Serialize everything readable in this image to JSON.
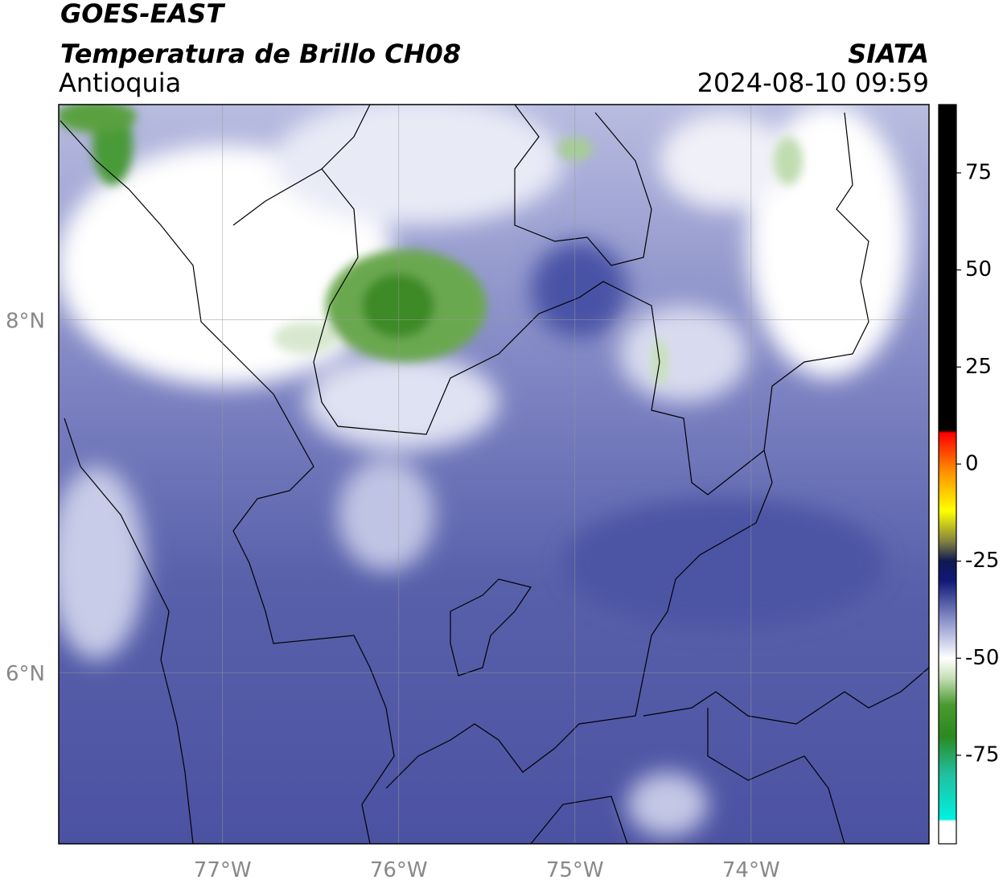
{
  "header": {
    "title": "GOES-EAST",
    "subtitle": "Temperatura de Brillo CH08",
    "region": "Antioquia",
    "source": "SIATA",
    "datetime": "2024-08-10 09:59"
  },
  "chart_data": {
    "type": "map",
    "xlim": [
      -77.93,
      -72.99
    ],
    "ylim": [
      5.03,
      9.22
    ],
    "xticks": [
      {
        "value": -77,
        "label": "77°W"
      },
      {
        "value": -76,
        "label": "76°W"
      },
      {
        "value": -75,
        "label": "75°W"
      },
      {
        "value": -74,
        "label": "74°W"
      }
    ],
    "yticks": [
      {
        "value": 6,
        "label": "6°N"
      },
      {
        "value": 8,
        "label": "8°N"
      }
    ],
    "grid": true,
    "colorbar": {
      "lim": [
        -97.8,
        92.6
      ],
      "ticks": [
        -75,
        -50,
        -25,
        0,
        25,
        50,
        75
      ],
      "stops": [
        {
          "value": -97.8,
          "color": "#ffffff"
        },
        {
          "value": -92,
          "color": "#ffffff"
        },
        {
          "value": -91.5,
          "color": "#00f0e0"
        },
        {
          "value": -80,
          "color": "#20c0a0"
        },
        {
          "value": -70,
          "color": "#2a8a20"
        },
        {
          "value": -62,
          "color": "#4a9a30"
        },
        {
          "value": -55,
          "color": "#c8e0b8"
        },
        {
          "value": -50,
          "color": "#ffffff"
        },
        {
          "value": -40,
          "color": "#8890c8"
        },
        {
          "value": -30,
          "color": "#101878"
        },
        {
          "value": -25,
          "color": "#101850"
        },
        {
          "value": -20,
          "color": "#808040"
        },
        {
          "value": -12,
          "color": "#ffff00"
        },
        {
          "value": -2,
          "color": "#ff9000"
        },
        {
          "value": 8,
          "color": "#ff0000"
        },
        {
          "value": 8.7,
          "color": "#000000"
        },
        {
          "value": 92.6,
          "color": "#000000"
        }
      ]
    }
  }
}
